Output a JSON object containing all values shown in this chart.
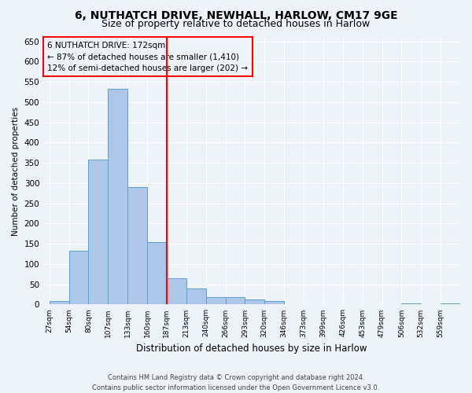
{
  "title1": "6, NUTHATCH DRIVE, NEWHALL, HARLOW, CM17 9GE",
  "title2": "Size of property relative to detached houses in Harlow",
  "xlabel": "Distribution of detached houses by size in Harlow",
  "ylabel": "Number of detached properties",
  "bar_color": "#aec6e8",
  "bar_edge_color": "#5a9fd4",
  "bar_values": [
    8,
    133,
    358,
    533,
    290,
    155,
    65,
    40,
    18,
    18,
    13,
    8,
    0,
    0,
    0,
    0,
    0,
    0,
    3,
    0,
    3
  ],
  "bin_labels": [
    "27sqm",
    "54sqm",
    "80sqm",
    "107sqm",
    "133sqm",
    "160sqm",
    "187sqm",
    "213sqm",
    "240sqm",
    "266sqm",
    "293sqm",
    "320sqm",
    "346sqm",
    "373sqm",
    "399sqm",
    "426sqm",
    "453sqm",
    "479sqm",
    "506sqm",
    "532sqm",
    "559sqm"
  ],
  "ylim": [
    0,
    660
  ],
  "yticks": [
    0,
    50,
    100,
    150,
    200,
    250,
    300,
    350,
    400,
    450,
    500,
    550,
    600,
    650
  ],
  "red_line_x": 6,
  "annotation_title": "6 NUTHATCH DRIVE: 172sqm",
  "annotation_line1": "← 87% of detached houses are smaller (1,410)",
  "annotation_line2": "12% of semi-detached houses are larger (202) →",
  "footnote1": "Contains HM Land Registry data © Crown copyright and database right 2024.",
  "footnote2": "Contains public sector information licensed under the Open Government Licence v3.0.",
  "bg_color": "#eef2f9",
  "grid_color": "#ffffff",
  "title1_fontsize": 10,
  "title2_fontsize": 9
}
